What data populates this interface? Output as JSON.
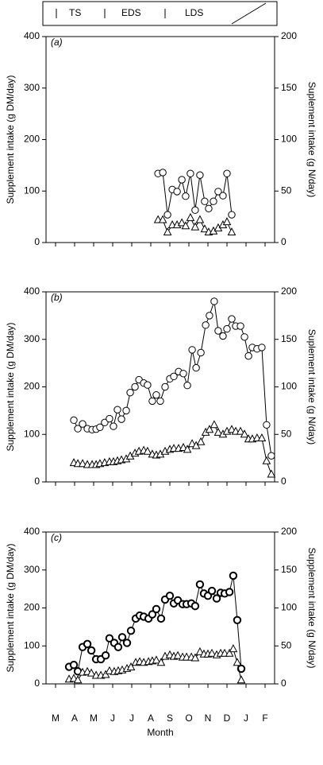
{
  "header": {
    "labels": [
      "TS",
      "EDS",
      "LDS"
    ]
  },
  "chart_data": [
    {
      "type": "line",
      "panel_label": "(a)",
      "y_label": "Supplement  intake (g DM/day)",
      "y2_label": "Suplement intake (g N/day)",
      "xlim": [
        0,
        12
      ],
      "ylim": [
        0,
        400
      ],
      "yticks": [
        0,
        100,
        200,
        300,
        400
      ],
      "y2lim": [
        0,
        200
      ],
      "y2ticks": [
        0,
        50,
        100,
        150,
        200
      ],
      "series": [
        {
          "marker": "circle",
          "color": "#000000",
          "x": [
            5.88,
            6.13,
            6.38,
            6.63,
            6.88,
            7.13,
            7.33,
            7.58,
            7.83,
            8.08,
            8.33,
            8.54,
            8.79,
            9.04,
            9.29,
            9.5,
            9.75
          ],
          "values": [
            134,
            136,
            54,
            103,
            99,
            122,
            90,
            134,
            63,
            131,
            80,
            66,
            80,
            99,
            91,
            134,
            54
          ]
        },
        {
          "marker": "triangle",
          "color": "#000000",
          "axis": "y2",
          "x": [
            5.88,
            6.13,
            6.38,
            6.63,
            6.88,
            7.13,
            7.33,
            7.58,
            7.83,
            8.08,
            8.33,
            8.54,
            8.79,
            9.04,
            9.29,
            9.5,
            9.75
          ],
          "values": [
            22,
            22,
            10,
            17,
            17,
            19,
            16,
            24,
            15,
            22,
            13,
            10,
            11,
            14,
            17,
            20,
            10
          ]
        }
      ]
    },
    {
      "type": "line",
      "panel_label": "(b)",
      "y_label": "Supplement intake (g DM/day)",
      "y2_label": "Suplement intake (g N/day)",
      "xlim": [
        0,
        12
      ],
      "ylim": [
        0,
        400
      ],
      "yticks": [
        0,
        100,
        200,
        300,
        400
      ],
      "y2lim": [
        0,
        200
      ],
      "y2ticks": [
        0,
        50,
        100,
        150,
        200
      ],
      "series": [
        {
          "marker": "circle",
          "color": "#000000",
          "x": [
            1.46,
            1.67,
            1.92,
            2.17,
            2.42,
            2.63,
            2.83,
            3.08,
            3.33,
            3.54,
            3.75,
            3.96,
            4.21,
            4.42,
            4.67,
            4.88,
            5.13,
            5.33,
            5.58,
            5.79,
            6.0,
            6.25,
            6.5,
            6.71,
            6.96,
            7.21,
            7.42,
            7.67,
            7.88,
            8.13,
            8.38,
            8.58,
            8.83,
            9.04,
            9.29,
            9.5,
            9.75,
            9.96,
            10.21,
            10.42,
            10.63,
            10.83,
            11.08,
            11.33,
            11.58,
            11.83
          ],
          "values": [
            130,
            112,
            122,
            112,
            110,
            111,
            115,
            125,
            133,
            117,
            152,
            132,
            150,
            188,
            200,
            215,
            208,
            204,
            170,
            183,
            170,
            200,
            217,
            222,
            232,
            228,
            203,
            278,
            240,
            272,
            330,
            350,
            380,
            318,
            307,
            322,
            343,
            328,
            328,
            305,
            265,
            283,
            280,
            283,
            120,
            55
          ]
        },
        {
          "marker": "triangle",
          "color": "#000000",
          "axis": "y2",
          "x": [
            1.46,
            1.67,
            1.92,
            2.17,
            2.42,
            2.63,
            2.83,
            3.08,
            3.33,
            3.54,
            3.75,
            3.96,
            4.21,
            4.42,
            4.67,
            4.88,
            5.13,
            5.33,
            5.58,
            5.79,
            6.0,
            6.25,
            6.5,
            6.71,
            6.96,
            7.21,
            7.42,
            7.67,
            7.88,
            8.13,
            8.38,
            8.58,
            8.83,
            9.04,
            9.29,
            9.5,
            9.75,
            9.96,
            10.21,
            10.42,
            10.63,
            10.83,
            11.08,
            11.33,
            11.58,
            11.83
          ],
          "values": [
            20,
            19,
            19,
            18,
            18,
            18,
            19,
            20,
            21,
            21,
            22,
            23,
            24,
            27,
            30,
            32,
            33,
            32,
            29,
            28,
            29,
            32,
            34,
            35,
            35,
            36,
            34,
            40,
            38,
            42,
            52,
            55,
            60,
            52,
            50,
            53,
            55,
            53,
            53,
            50,
            45,
            45,
            46,
            46,
            22,
            8
          ]
        }
      ]
    },
    {
      "type": "line",
      "panel_label": "(c)",
      "y_label": "Supplement intake (g DM/day)",
      "y2_label": "Supplement intake (g N/day)",
      "x_label": "Month",
      "xlim": [
        0,
        12
      ],
      "xticks": [
        {
          "value": 0.5,
          "label": "M"
        },
        {
          "value": 1.5,
          "label": "A"
        },
        {
          "value": 2.5,
          "label": "M"
        },
        {
          "value": 3.5,
          "label": "J"
        },
        {
          "value": 4.5,
          "label": "J"
        },
        {
          "value": 5.5,
          "label": "A"
        },
        {
          "value": 6.5,
          "label": "S"
        },
        {
          "value": 7.5,
          "label": "O"
        },
        {
          "value": 8.5,
          "label": "N"
        },
        {
          "value": 9.5,
          "label": "D"
        },
        {
          "value": 10.5,
          "label": "J"
        },
        {
          "value": 11.5,
          "label": "F"
        }
      ],
      "ylim": [
        0,
        400
      ],
      "yticks": [
        0,
        100,
        200,
        300,
        400
      ],
      "y2lim": [
        0,
        200
      ],
      "y2ticks": [
        0,
        50,
        100,
        150,
        200
      ],
      "series": [
        {
          "marker": "circle",
          "color": "#000000",
          "marker_edge_width": 2,
          "x": [
            1.21,
            1.46,
            1.67,
            1.92,
            2.17,
            2.38,
            2.63,
            2.88,
            3.13,
            3.33,
            3.58,
            3.79,
            4.0,
            4.25,
            4.46,
            4.71,
            4.92,
            5.13,
            5.38,
            5.58,
            5.79,
            6.04,
            6.25,
            6.5,
            6.71,
            6.92,
            7.17,
            7.38,
            7.63,
            7.83,
            8.08,
            8.29,
            8.5,
            8.71,
            8.96,
            9.17,
            9.38,
            9.63,
            9.83,
            10.04,
            10.25
          ],
          "values": [
            45,
            50,
            33,
            97,
            105,
            88,
            65,
            65,
            75,
            120,
            108,
            97,
            123,
            108,
            140,
            172,
            180,
            177,
            172,
            183,
            197,
            172,
            222,
            232,
            212,
            220,
            210,
            210,
            212,
            205,
            262,
            238,
            232,
            245,
            225,
            240,
            238,
            242,
            285,
            168,
            40
          ]
        },
        {
          "marker": "triangle",
          "color": "#000000",
          "axis": "y2",
          "x": [
            1.21,
            1.46,
            1.67,
            1.92,
            2.17,
            2.38,
            2.63,
            2.88,
            3.13,
            3.33,
            3.58,
            3.79,
            4.0,
            4.25,
            4.46,
            4.71,
            4.92,
            5.13,
            5.38,
            5.58,
            5.79,
            6.04,
            6.25,
            6.5,
            6.71,
            6.92,
            7.17,
            7.38,
            7.63,
            7.83,
            8.08,
            8.29,
            8.5,
            8.71,
            8.96,
            9.17,
            9.38,
            9.63,
            9.83,
            10.04,
            10.25
          ],
          "values": [
            6,
            7,
            5,
            15,
            16,
            14,
            11,
            11,
            12,
            17,
            16,
            17,
            18,
            20,
            22,
            28,
            29,
            28,
            29,
            30,
            31,
            28,
            36,
            38,
            36,
            37,
            35,
            35,
            35,
            34,
            42,
            39,
            39,
            40,
            38,
            40,
            40,
            40,
            46,
            28,
            5
          ]
        }
      ]
    }
  ]
}
